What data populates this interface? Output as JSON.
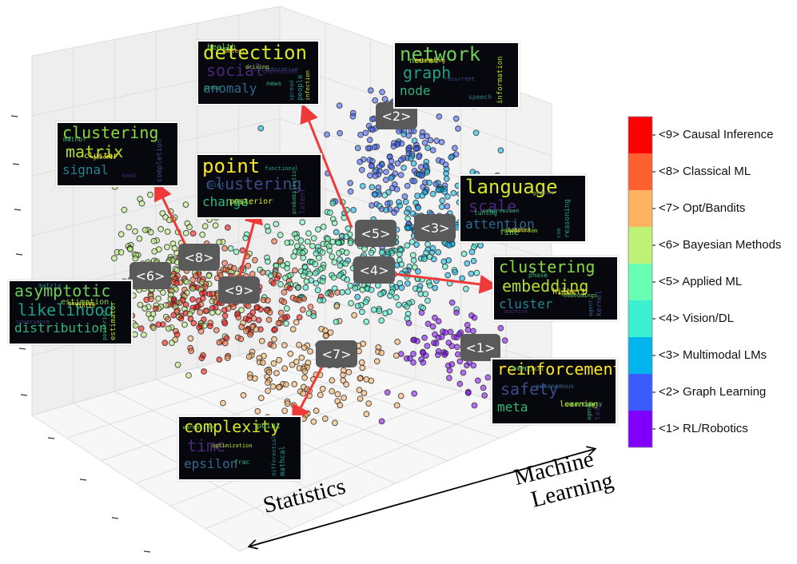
{
  "chart_data": {
    "type": "scatter",
    "axis_labels": {
      "x": "Statistics",
      "y": "Machine Learning"
    },
    "colorbar": {
      "colors": [
        "#8000ff",
        "#3a5cff",
        "#00b4ec",
        "#3cf0d2",
        "#67ffb3",
        "#bef277",
        "#ffb360",
        "#ff6030",
        "#ff0000"
      ],
      "labels": [
        "<1> RL/Robotics",
        "<2> Graph Learning",
        "<3> Multimodal LMs",
        "<4> Vision/DL",
        "<5> Applied ML",
        "<6> Bayesian Methods",
        "<7> Opt/Bandits",
        "<8> Classical ML",
        "<9> Causal Inference"
      ]
    },
    "cluster_markers": [
      "<1>",
      "<2>",
      "<3>",
      "<4>",
      "<5>",
      "<6>",
      "<7>",
      "<8>",
      "<9>"
    ],
    "wordclouds": [
      {
        "id": "detection",
        "words": [
          "detection",
          "social",
          "anomaly",
          "health",
          "people",
          "news",
          "item",
          "driving",
          "spread",
          "detect",
          "collaborative",
          "group",
          "infection",
          "depression"
        ]
      },
      {
        "id": "graph",
        "words": [
          "network",
          "graph",
          "node",
          "neural",
          "information",
          "speech",
          "embedding",
          "recurrent"
        ]
      },
      {
        "id": "clustering-matrix",
        "words": [
          "clustering",
          "matrix",
          "signal",
          "cluster",
          "completion",
          "mathbf",
          "genetic",
          "band"
        ]
      },
      {
        "id": "point",
        "words": [
          "point",
          "clustering",
          "change",
          "posterior",
          "latent",
          "joint",
          "topic",
          "functional",
          "probabilistic"
        ]
      },
      {
        "id": "attention",
        "words": [
          "language",
          "scale",
          "attention",
          "fine",
          "reasoning",
          "tuning",
          "downstream",
          "pre",
          "com",
          "conduct",
          "issue",
          "compression"
        ]
      },
      {
        "id": "asymptotic",
        "words": [
          "asymptotic",
          "likelihood",
          "distribution",
          "estimation",
          "estimator",
          "matrix",
          "gaussian",
          "covariance",
          "posterior",
          "finite"
        ]
      },
      {
        "id": "learning-cluster",
        "words": [
          "clustering",
          "embedding",
          "cluster",
          "hilbert",
          "kernel",
          "phase",
          "space",
          "machine",
          "agent",
          "embeddings"
        ]
      },
      {
        "id": "reinforcement",
        "words": [
          "reinforcement",
          "safety",
          "meta",
          "learning",
          "task",
          "autonomous",
          "uncertainty",
          "human",
          "agent",
          "testing",
          "critical"
        ]
      },
      {
        "id": "complexity",
        "words": [
          "complexity",
          "time",
          "epsilon",
          "point",
          "mathcal",
          "frac",
          "varepsilon",
          "optimization",
          "differential"
        ]
      }
    ]
  }
}
